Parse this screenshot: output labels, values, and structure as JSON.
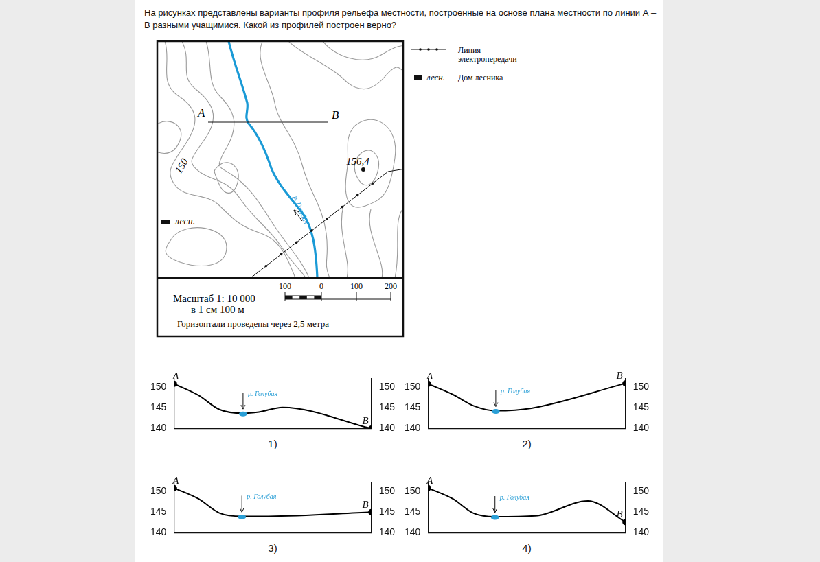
{
  "question": [
    "На рисунках представлены варианты профиля рельефа местности, построенные на основе плана местности по линии А –",
    "В разными учащимися. Какой из профилей построен верно?"
  ],
  "map": {
    "point_a": "A",
    "point_b": "B",
    "contour_label": "150",
    "spot_height": "156,4",
    "river": "р. Голубая",
    "forester_house": "лесн."
  },
  "legend": {
    "power_line": [
      "Линия",
      "электропередачи"
    ],
    "house_short": "лесн.",
    "house": "Дом лесника"
  },
  "scale": {
    "ratio": "Масштаб  1: 10 000",
    "cm": "в 1 см  100 м",
    "bar_labels": [
      100,
      0,
      100,
      200
    ],
    "contours": "Горизонтали проведены через 2,5 метра"
  },
  "chart_data": [
    {
      "type": "line",
      "caption": "1)",
      "color": "#000000",
      "x": [
        0,
        12.5,
        23,
        35,
        43,
        55,
        100
      ],
      "values": [
        150.8,
        148.0,
        144.6,
        143.7,
        144.0,
        145.1,
        140.0
      ],
      "xlim": [
        0,
        100
      ],
      "ylim": [
        140,
        152
      ],
      "yticks": [
        140,
        145,
        150
      ],
      "y2lim": [
        140,
        152
      ],
      "y2ticks": [
        140,
        145,
        150
      ],
      "grid": false,
      "tick_labels": "y",
      "annotations": [
        {
          "text": "A",
          "x": 0,
          "y": 150.8
        },
        {
          "text": "B",
          "x": 100,
          "y": 140.0
        },
        {
          "text": "р. Голубая",
          "x": 35,
          "y": 143.7,
          "color": "#2a9fd6"
        }
      ]
    },
    {
      "type": "line",
      "caption": "2)",
      "color": "#000000",
      "x": [
        0,
        12.6,
        23.5,
        34.3,
        52.3,
        100
      ],
      "values": [
        150.8,
        148.2,
        145.4,
        144.3,
        144.9,
        150.9
      ],
      "xlim": [
        0,
        100
      ],
      "ylim": [
        140,
        152
      ],
      "yticks": [
        140,
        145,
        150
      ],
      "y2lim": [
        140,
        152
      ],
      "y2ticks": [
        140,
        145,
        150
      ],
      "grid": false,
      "tick_labels": "y",
      "annotations": [
        {
          "text": "A",
          "x": 0,
          "y": 150.8
        },
        {
          "text": "B",
          "x": 100,
          "y": 150.9
        },
        {
          "text": "р. Голубая",
          "x": 34.3,
          "y": 144.3,
          "color": "#2a9fd6"
        }
      ]
    },
    {
      "type": "line",
      "caption": "3)",
      "color": "#000000",
      "x": [
        0,
        12.4,
        23,
        34.4,
        47.9,
        100
      ],
      "values": [
        150.8,
        148.2,
        144.8,
        144.0,
        144.0,
        145.0
      ],
      "xlim": [
        0,
        100
      ],
      "ylim": [
        140,
        152
      ],
      "yticks": [
        140,
        145,
        150
      ],
      "y2lim": [
        140,
        152
      ],
      "y2ticks": [
        140,
        145,
        150
      ],
      "grid": false,
      "tick_labels": "y",
      "annotations": [
        {
          "text": "A",
          "x": 0,
          "y": 150.8
        },
        {
          "text": "B",
          "x": 100,
          "y": 145.0
        },
        {
          "text": "р. Голубая",
          "x": 34.4,
          "y": 144.0,
          "color": "#2a9fd6"
        }
      ]
    },
    {
      "type": "line",
      "caption": "4)",
      "color": "#000000",
      "x": [
        0,
        12.5,
        23.2,
        33.9,
        54.3,
        81,
        100
      ],
      "values": [
        150.8,
        148.2,
        144.7,
        143.9,
        144.1,
        147.7,
        142.6
      ],
      "xlim": [
        0,
        100
      ],
      "ylim": [
        140,
        152
      ],
      "yticks": [
        140,
        145,
        150
      ],
      "y2lim": [
        140,
        152
      ],
      "y2ticks": [
        140,
        145,
        150
      ],
      "grid": false,
      "tick_labels": "y",
      "annotations": [
        {
          "text": "A",
          "x": 0,
          "y": 150.8
        },
        {
          "text": "B",
          "x": 100,
          "y": 142.6
        },
        {
          "text": "р. Голубая",
          "x": 33.9,
          "y": 143.9,
          "color": "#2a9fd6"
        }
      ]
    }
  ]
}
